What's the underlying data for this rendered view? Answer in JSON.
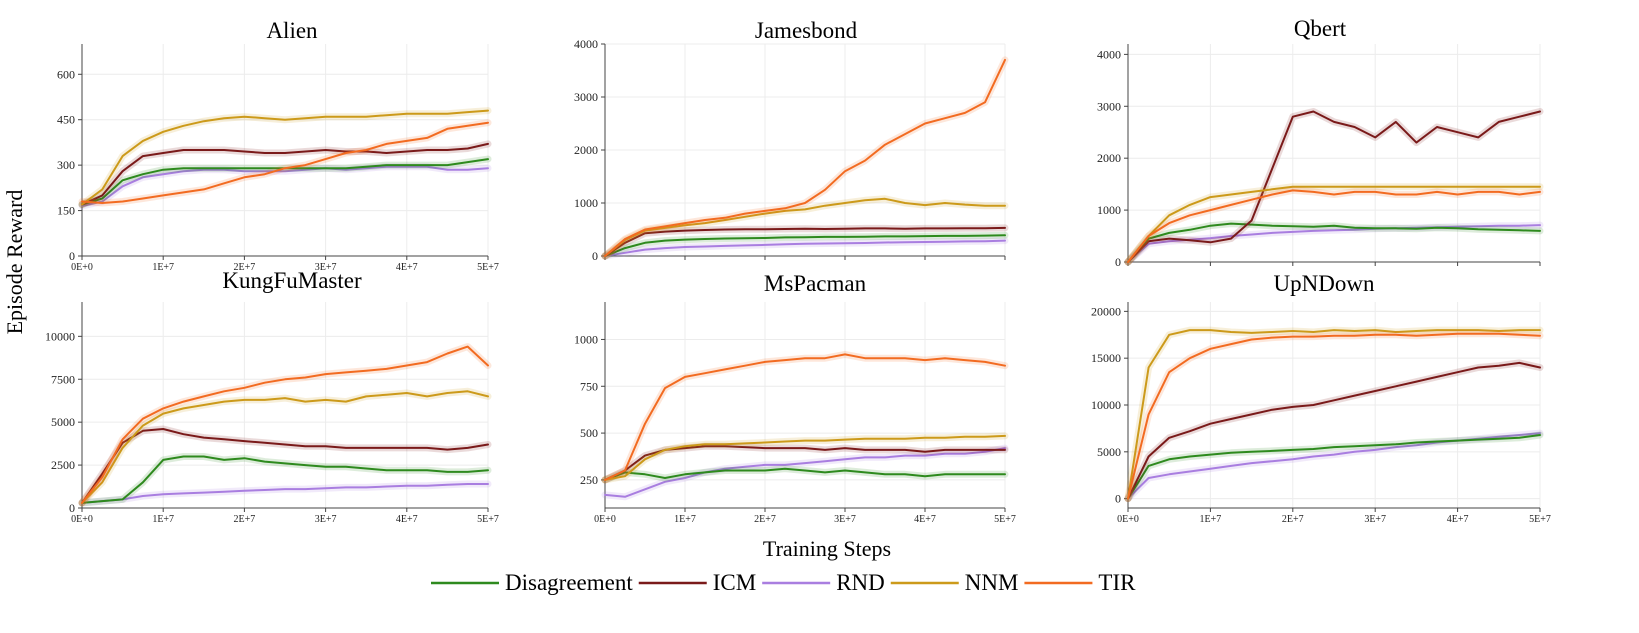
{
  "ylabel": "Episode Reward",
  "xlabel": "Training Steps",
  "colors": {
    "Disagreement": "#2e8a1e",
    "ICM": "#7a1a1a",
    "RND": "#a97ee0",
    "NNM": "#cc9a1a",
    "TIR": "#f26b21"
  },
  "legend": [
    "Disagreement",
    "ICM",
    "RND",
    "NNM",
    "TIR"
  ],
  "chart_data": [
    {
      "type": "line",
      "title": "Alien",
      "xlim": [
        0,
        50000000
      ],
      "ylim": [
        0,
        700
      ],
      "xticks": [
        0,
        10000000,
        20000000,
        30000000,
        40000000,
        50000000
      ],
      "xtick_labels": [
        "0E+0",
        "1E+7",
        "2E+7",
        "3E+7",
        "4E+7",
        "5E+7"
      ],
      "yticks": [
        0,
        150,
        300,
        450,
        600
      ],
      "ytick_labels": [
        "0",
        "150",
        "300",
        "450",
        "600"
      ],
      "x": [
        0,
        2500000,
        5000000,
        7500000,
        10000000,
        12500000,
        15000000,
        17500000,
        20000000,
        22500000,
        25000000,
        27500000,
        30000000,
        32500000,
        35000000,
        37500000,
        40000000,
        42500000,
        45000000,
        47500000,
        50000000
      ],
      "series": [
        {
          "name": "Disagreement",
          "values": [
            170,
            190,
            250,
            270,
            285,
            290,
            290,
            290,
            290,
            290,
            290,
            290,
            290,
            290,
            295,
            300,
            300,
            300,
            300,
            310,
            320
          ]
        },
        {
          "name": "ICM",
          "values": [
            170,
            200,
            280,
            330,
            340,
            350,
            350,
            350,
            345,
            340,
            340,
            345,
            350,
            345,
            345,
            340,
            345,
            350,
            350,
            355,
            370
          ]
        },
        {
          "name": "RND",
          "values": [
            165,
            180,
            230,
            260,
            270,
            280,
            285,
            285,
            280,
            280,
            280,
            285,
            290,
            285,
            290,
            295,
            295,
            295,
            285,
            285,
            290
          ]
        },
        {
          "name": "NNM",
          "values": [
            170,
            220,
            330,
            380,
            410,
            430,
            445,
            455,
            460,
            455,
            450,
            455,
            460,
            460,
            460,
            465,
            470,
            470,
            470,
            475,
            480
          ]
        },
        {
          "name": "TIR",
          "values": [
            180,
            175,
            180,
            190,
            200,
            210,
            220,
            240,
            260,
            270,
            290,
            300,
            320,
            340,
            350,
            370,
            380,
            390,
            420,
            430,
            440
          ]
        }
      ]
    },
    {
      "type": "line",
      "title": "Jamesbond",
      "xlim": [
        0,
        50000000
      ],
      "ylim": [
        0,
        4000
      ],
      "xticks": [
        0,
        10000000,
        20000000,
        30000000,
        40000000,
        50000000
      ],
      "xtick_labels": [],
      "yticks": [
        0,
        1000,
        2000,
        3000,
        4000
      ],
      "ytick_labels": [
        "0",
        "1000",
        "2000",
        "3000",
        "4000"
      ],
      "x": [
        0,
        2500000,
        5000000,
        7500000,
        10000000,
        12500000,
        15000000,
        17500000,
        20000000,
        22500000,
        25000000,
        27500000,
        30000000,
        32500000,
        35000000,
        37500000,
        40000000,
        42500000,
        45000000,
        47500000,
        50000000
      ],
      "series": [
        {
          "name": "Disagreement",
          "values": [
            0,
            150,
            250,
            290,
            310,
            320,
            330,
            335,
            340,
            350,
            355,
            360,
            360,
            365,
            370,
            370,
            375,
            380,
            380,
            385,
            390
          ]
        },
        {
          "name": "ICM",
          "values": [
            0,
            250,
            430,
            460,
            480,
            490,
            500,
            505,
            505,
            510,
            515,
            510,
            515,
            520,
            520,
            515,
            520,
            520,
            525,
            525,
            530
          ]
        },
        {
          "name": "RND",
          "values": [
            0,
            60,
            120,
            150,
            170,
            180,
            190,
            200,
            210,
            220,
            230,
            235,
            240,
            245,
            255,
            260,
            265,
            270,
            275,
            280,
            290
          ]
        },
        {
          "name": "NNM",
          "values": [
            0,
            300,
            480,
            530,
            580,
            620,
            680,
            740,
            800,
            850,
            880,
            950,
            1000,
            1050,
            1080,
            1000,
            960,
            1000,
            970,
            950,
            950
          ]
        },
        {
          "name": "TIR",
          "values": [
            0,
            320,
            500,
            560,
            620,
            680,
            720,
            800,
            850,
            900,
            1000,
            1250,
            1600,
            1800,
            2100,
            2300,
            2500,
            2600,
            2700,
            2900,
            3700
          ]
        }
      ]
    },
    {
      "type": "line",
      "title": "Qbert",
      "xlim": [
        0,
        50000000
      ],
      "ylim": [
        0,
        4200
      ],
      "xticks": [
        0,
        10000000,
        20000000,
        30000000,
        40000000,
        50000000
      ],
      "xtick_labels": [],
      "yticks": [
        0,
        1000,
        2000,
        3000,
        4000
      ],
      "ytick_labels": [
        "0",
        "1000",
        "2000",
        "3000",
        "4000"
      ],
      "x": [
        0,
        2500000,
        5000000,
        7500000,
        10000000,
        12500000,
        15000000,
        17500000,
        20000000,
        22500000,
        25000000,
        27500000,
        30000000,
        32500000,
        35000000,
        37500000,
        40000000,
        42500000,
        45000000,
        47500000,
        50000000
      ],
      "series": [
        {
          "name": "Disagreement",
          "values": [
            0,
            450,
            560,
            620,
            700,
            740,
            720,
            700,
            690,
            680,
            700,
            660,
            650,
            650,
            640,
            660,
            650,
            630,
            620,
            610,
            600
          ]
        },
        {
          "name": "ICM",
          "values": [
            0,
            400,
            450,
            420,
            380,
            450,
            800,
            1800,
            2800,
            2900,
            2700,
            2600,
            2400,
            2700,
            2300,
            2600,
            2500,
            2400,
            2700,
            2800,
            2900
          ]
        },
        {
          "name": "RND",
          "values": [
            0,
            350,
            400,
            430,
            460,
            500,
            530,
            560,
            580,
            600,
            610,
            620,
            640,
            650,
            660,
            670,
            680,
            690,
            700,
            700,
            710
          ]
        },
        {
          "name": "NNM",
          "values": [
            0,
            500,
            900,
            1100,
            1250,
            1300,
            1350,
            1400,
            1450,
            1450,
            1450,
            1450,
            1450,
            1450,
            1450,
            1450,
            1450,
            1450,
            1450,
            1450,
            1450
          ]
        },
        {
          "name": "TIR",
          "values": [
            0,
            500,
            750,
            900,
            1000,
            1100,
            1200,
            1300,
            1380,
            1350,
            1300,
            1350,
            1350,
            1300,
            1300,
            1350,
            1300,
            1350,
            1350,
            1300,
            1350
          ]
        }
      ]
    },
    {
      "type": "line",
      "title": "KungFuMaster",
      "xlim": [
        0,
        50000000
      ],
      "ylim": [
        0,
        12000
      ],
      "xticks": [
        0,
        10000000,
        20000000,
        30000000,
        40000000,
        50000000
      ],
      "xtick_labels": [
        "0E+0",
        "1E+7",
        "2E+7",
        "3E+7",
        "4E+7",
        "5E+7"
      ],
      "yticks": [
        0,
        2500,
        5000,
        7500,
        10000
      ],
      "ytick_labels": [
        "0",
        "2500",
        "5000",
        "7500",
        "10000"
      ],
      "x": [
        0,
        2500000,
        5000000,
        7500000,
        10000000,
        12500000,
        15000000,
        17500000,
        20000000,
        22500000,
        25000000,
        27500000,
        30000000,
        32500000,
        35000000,
        37500000,
        40000000,
        42500000,
        45000000,
        47500000,
        50000000
      ],
      "series": [
        {
          "name": "Disagreement",
          "values": [
            300,
            400,
            500,
            1500,
            2800,
            3000,
            3000,
            2800,
            2900,
            2700,
            2600,
            2500,
            2400,
            2400,
            2300,
            2200,
            2200,
            2200,
            2100,
            2100,
            2200
          ]
        },
        {
          "name": "ICM",
          "values": [
            300,
            2000,
            3800,
            4500,
            4600,
            4300,
            4100,
            4000,
            3900,
            3800,
            3700,
            3600,
            3600,
            3500,
            3500,
            3500,
            3500,
            3500,
            3400,
            3500,
            3700
          ]
        },
        {
          "name": "RND",
          "values": [
            300,
            400,
            500,
            700,
            800,
            850,
            900,
            950,
            1000,
            1050,
            1100,
            1100,
            1150,
            1200,
            1200,
            1250,
            1300,
            1300,
            1350,
            1400,
            1400
          ]
        },
        {
          "name": "NNM",
          "values": [
            300,
            1500,
            3500,
            4800,
            5500,
            5800,
            6000,
            6200,
            6300,
            6300,
            6400,
            6200,
            6300,
            6200,
            6500,
            6600,
            6700,
            6500,
            6700,
            6800,
            6500
          ]
        },
        {
          "name": "TIR",
          "values": [
            300,
            1800,
            4000,
            5200,
            5800,
            6200,
            6500,
            6800,
            7000,
            7300,
            7500,
            7600,
            7800,
            7900,
            8000,
            8100,
            8300,
            8500,
            9000,
            9400,
            8300
          ]
        }
      ]
    },
    {
      "type": "line",
      "title": "MsPacman",
      "xlim": [
        0,
        50000000
      ],
      "ylim": [
        100,
        1200
      ],
      "xticks": [
        0,
        10000000,
        20000000,
        30000000,
        40000000,
        50000000
      ],
      "xtick_labels": [
        "0E+0",
        "1E+7",
        "2E+7",
        "3E+7",
        "4E+7",
        "5E+7"
      ],
      "yticks": [
        250,
        500,
        750,
        1000
      ],
      "ytick_labels": [
        "250",
        "500",
        "750",
        "1000"
      ],
      "x": [
        0,
        2500000,
        5000000,
        7500000,
        10000000,
        12500000,
        15000000,
        17500000,
        20000000,
        22500000,
        25000000,
        27500000,
        30000000,
        32500000,
        35000000,
        37500000,
        40000000,
        42500000,
        45000000,
        47500000,
        50000000
      ],
      "series": [
        {
          "name": "Disagreement",
          "values": [
            250,
            290,
            280,
            260,
            280,
            290,
            300,
            300,
            300,
            310,
            300,
            290,
            300,
            290,
            280,
            280,
            270,
            280,
            280,
            280,
            280
          ]
        },
        {
          "name": "ICM",
          "values": [
            250,
            300,
            380,
            410,
            420,
            430,
            430,
            425,
            420,
            420,
            420,
            410,
            420,
            410,
            410,
            410,
            400,
            410,
            410,
            410,
            410
          ]
        },
        {
          "name": "RND",
          "values": [
            170,
            160,
            200,
            240,
            260,
            290,
            310,
            320,
            330,
            330,
            340,
            350,
            360,
            370,
            370,
            380,
            380,
            390,
            390,
            400,
            420
          ]
        },
        {
          "name": "NNM",
          "values": [
            250,
            270,
            360,
            410,
            430,
            440,
            440,
            445,
            450,
            455,
            460,
            460,
            465,
            470,
            470,
            470,
            475,
            475,
            480,
            480,
            485
          ]
        },
        {
          "name": "TIR",
          "values": [
            250,
            300,
            550,
            740,
            800,
            820,
            840,
            860,
            880,
            890,
            900,
            900,
            920,
            900,
            900,
            900,
            890,
            900,
            890,
            880,
            860
          ]
        }
      ]
    },
    {
      "type": "line",
      "title": "UpNDown",
      "xlim": [
        0,
        50000000
      ],
      "ylim": [
        -1000,
        21000
      ],
      "xticks": [
        0,
        10000000,
        20000000,
        30000000,
        40000000,
        50000000
      ],
      "xtick_labels": [
        "0E+0",
        "1E+7",
        "2E+7",
        "3E+7",
        "4E+7",
        "5E+7"
      ],
      "yticks": [
        0,
        5000,
        10000,
        15000,
        20000
      ],
      "ytick_labels": [
        "0",
        "5000",
        "10000",
        "15000",
        "20000"
      ],
      "x": [
        0,
        2500000,
        5000000,
        7500000,
        10000000,
        12500000,
        15000000,
        17500000,
        20000000,
        22500000,
        25000000,
        27500000,
        30000000,
        32500000,
        35000000,
        37500000,
        40000000,
        42500000,
        45000000,
        47500000,
        50000000
      ],
      "series": [
        {
          "name": "Disagreement",
          "values": [
            0,
            3500,
            4200,
            4500,
            4700,
            4900,
            5000,
            5100,
            5200,
            5300,
            5500,
            5600,
            5700,
            5800,
            6000,
            6100,
            6200,
            6300,
            6400,
            6500,
            6800
          ]
        },
        {
          "name": "ICM",
          "values": [
            0,
            4500,
            6500,
            7200,
            8000,
            8500,
            9000,
            9500,
            9800,
            10000,
            10500,
            11000,
            11500,
            12000,
            12500,
            13000,
            13500,
            14000,
            14200,
            14500,
            14000
          ]
        },
        {
          "name": "RND",
          "values": [
            0,
            2200,
            2600,
            2900,
            3200,
            3500,
            3800,
            4000,
            4200,
            4500,
            4700,
            5000,
            5200,
            5500,
            5700,
            6000,
            6200,
            6400,
            6600,
            6800,
            7000
          ]
        },
        {
          "name": "NNM",
          "values": [
            0,
            14000,
            17500,
            18000,
            18000,
            17800,
            17700,
            17800,
            17900,
            17800,
            18000,
            17900,
            18000,
            17800,
            17900,
            18000,
            18000,
            18000,
            17900,
            18000,
            18000
          ]
        },
        {
          "name": "TIR",
          "values": [
            0,
            9000,
            13500,
            15000,
            16000,
            16500,
            17000,
            17200,
            17300,
            17300,
            17400,
            17400,
            17500,
            17500,
            17400,
            17500,
            17600,
            17600,
            17600,
            17500,
            17400
          ]
        }
      ]
    }
  ]
}
